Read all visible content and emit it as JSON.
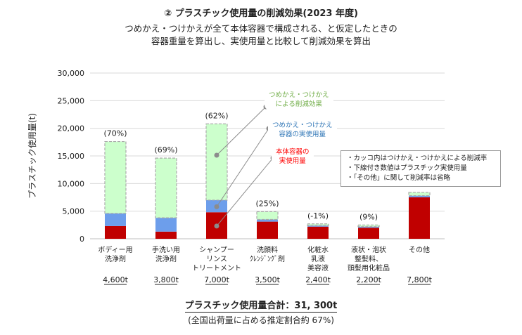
{
  "title": "② プラスチック使用量の削減効果(2023 年度)",
  "subtitle_line1": "つめかえ・つけかえが全て本体容器で構成される、と仮定したときの",
  "subtitle_line2": "容器重量を算出し、実使用量と比較して削減効果を算出",
  "total_label": "プラスチック使用量合計：31, 300t",
  "share_label": "(全国出荷量に占める推定割合約 67%)",
  "notes": [
    "・カッコ内はつけかえ・つけかえによる削減率",
    "・下線付き数値はプラスチック実使用量",
    "・「その他」に関して削減率は省略"
  ],
  "colors": {
    "body": "#c00000",
    "refill": "#6d9eeb",
    "reduction": "#ccffcc",
    "reduction_border": "#aaaaaa",
    "callout_reduction": "#70ad47",
    "callout_refill": "#2e75b6",
    "callout_body": "#ff0000"
  },
  "chart_data": {
    "type": "bar",
    "stacked": true,
    "ylabel": "プラスチック使用量(t)",
    "ylim": [
      0,
      30000
    ],
    "yticks": [
      "0",
      "5,000",
      "10,000",
      "15,000",
      "20,000",
      "25,000",
      "30,000"
    ],
    "grid": true,
    "categories": [
      [
        "ボディー用",
        "洗浄剤"
      ],
      [
        "手洗い用",
        "洗浄剤"
      ],
      [
        "シャンプー",
        "リンス",
        "トリートメント"
      ],
      [
        "洗顔料",
        "ｸﾚﾝｼﾞﾝｸﾞ剤"
      ],
      [
        "化粧水",
        "乳液",
        "美容液"
      ],
      [
        "液状・泡状",
        "整髪料、",
        "頭髪用化粧品"
      ],
      [
        "その他"
      ]
    ],
    "series": [
      {
        "name": "本体容器の\n実使用量",
        "values": [
          2300,
          1300,
          4800,
          3100,
          2200,
          2000,
          7500
        ]
      },
      {
        "name": "つめかえ・つけかえ\n容器の実使用量",
        "values": [
          2300,
          2500,
          2200,
          400,
          200,
          200,
          300
        ]
      },
      {
        "name": "つめかえ・つけかえ\nによる削減効果",
        "values": [
          13000,
          10800,
          13800,
          1400,
          300,
          300,
          600
        ]
      }
    ],
    "reduction_rate_labels": [
      "(70%)",
      "(69%)",
      "(62%)",
      "(25%)",
      "(-1%)",
      "(9%)",
      ""
    ],
    "actual_usage_labels": [
      "4,600t",
      "3,800t",
      "7,000t",
      "3,500t",
      "2,400t",
      "2,200t",
      "7,800t"
    ]
  }
}
